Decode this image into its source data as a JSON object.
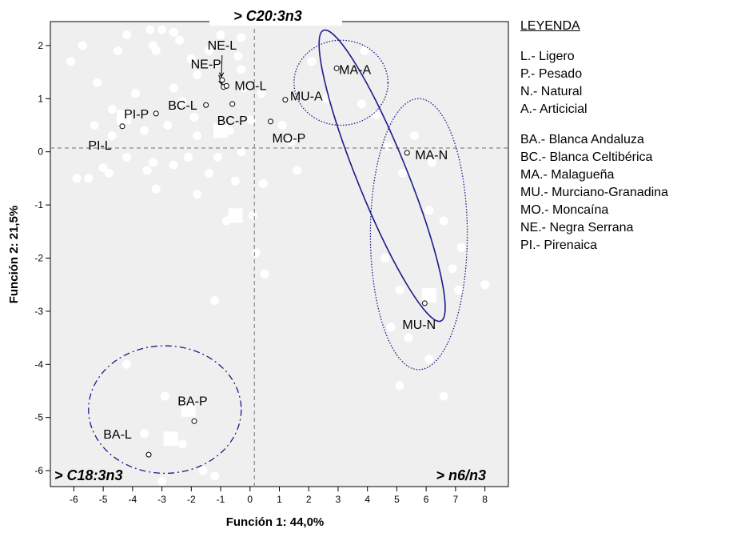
{
  "chart_data": {
    "type": "scatter",
    "xlabel": "Función 1: 44,0%",
    "ylabel": "Función 2: 21,5%",
    "xlim": [
      -6.8,
      8.8
    ],
    "ylim": [
      -6.3,
      2.45
    ],
    "x_ticks": [
      -6,
      -5,
      -4,
      -3,
      -2,
      -1,
      0,
      1,
      2,
      3,
      4,
      5,
      6,
      7,
      8
    ],
    "y_ticks": [
      2,
      1,
      0,
      -1,
      -2,
      -3,
      -4,
      -5,
      -6
    ],
    "reference_lines": {
      "x": 0.15,
      "y": 0.07
    },
    "grid": false,
    "corner_labels": {
      "top": "> C20:3n3",
      "bottom_left": "> C18:3n3",
      "bottom_right": "> n6/n3"
    },
    "centroids": [
      {
        "label": "NE-L",
        "x": -0.95,
        "y": 1.35
      },
      {
        "label": "NE-P",
        "x": -0.9,
        "y": 1.22
      },
      {
        "label": "MO-L",
        "x": -0.8,
        "y": 1.24
      },
      {
        "label": "BC-L",
        "x": -1.5,
        "y": 0.88
      },
      {
        "label": "BC-P",
        "x": -0.6,
        "y": 0.9
      },
      {
        "label": "PI-P",
        "x": -3.2,
        "y": 0.72
      },
      {
        "label": "PI-L",
        "x": -4.35,
        "y": 0.48
      },
      {
        "label": "MU-A",
        "x": 1.2,
        "y": 0.98
      },
      {
        "label": "MO-P",
        "x": 0.7,
        "y": 0.57
      },
      {
        "label": "MA-A",
        "x": 2.95,
        "y": 1.57
      },
      {
        "label": "MA-N",
        "x": 5.35,
        "y": -0.02
      },
      {
        "label": "MU-N",
        "x": 5.95,
        "y": -2.85
      },
      {
        "label": "BA-P",
        "x": -1.9,
        "y": -5.07
      },
      {
        "label": "BA-L",
        "x": -3.45,
        "y": -5.7
      }
    ],
    "groups": [
      {
        "members": [
          "MA-A"
        ],
        "style": "dotted",
        "cx": 3.1,
        "cy": 1.3,
        "rx": 1.6,
        "ry": 0.8,
        "rot": 0
      },
      {
        "members": [
          "MA-N",
          "MU-N"
        ],
        "style": "dotted",
        "cx": 5.75,
        "cy": -1.55,
        "rx": 1.65,
        "ry": 2.55,
        "rot": 0
      },
      {
        "members": [
          "MA-A",
          "MA-N",
          "MU-N"
        ],
        "style": "solid",
        "cx": 4.5,
        "cy": -0.45,
        "rx": 0.85,
        "ry": 2.95,
        "rot": -22
      },
      {
        "members": [
          "BA-P",
          "BA-L"
        ],
        "style": "dashdot",
        "cx": -2.9,
        "cy": -4.85,
        "rx": 2.6,
        "ry": 1.2,
        "rot": 0
      }
    ],
    "background_points": [
      [
        -4.2,
        2.2
      ],
      [
        -3.4,
        2.3
      ],
      [
        -3.0,
        2.3
      ],
      [
        -2.6,
        2.25
      ],
      [
        -1.0,
        2.2
      ],
      [
        -0.3,
        2.15
      ],
      [
        -5.7,
        2.0
      ],
      [
        -4.5,
        1.9
      ],
      [
        -3.2,
        1.9
      ],
      [
        -2.0,
        1.75
      ],
      [
        -1.4,
        1.9
      ],
      [
        -0.4,
        1.8
      ],
      [
        -6.1,
        1.7
      ],
      [
        -5.2,
        1.3
      ],
      [
        -3.9,
        1.1
      ],
      [
        -2.6,
        1.2
      ],
      [
        -1.8,
        1.45
      ],
      [
        -0.3,
        1.55
      ],
      [
        -4.7,
        0.8
      ],
      [
        -2.3,
        0.95
      ],
      [
        -1.9,
        0.65
      ],
      [
        -0.2,
        1.2
      ],
      [
        0.4,
        1.1
      ],
      [
        -5.3,
        0.5
      ],
      [
        -4.7,
        0.3
      ],
      [
        -3.6,
        0.4
      ],
      [
        -2.8,
        0.5
      ],
      [
        -1.8,
        0.3
      ],
      [
        -0.7,
        0.4
      ],
      [
        0.05,
        0.6
      ],
      [
        1.1,
        0.5
      ],
      [
        -5.0,
        -0.3
      ],
      [
        -4.2,
        -0.1
      ],
      [
        -3.3,
        -0.2
      ],
      [
        -2.1,
        -0.1
      ],
      [
        -1.1,
        -0.1
      ],
      [
        -0.3,
        0.0
      ],
      [
        -5.9,
        -0.5
      ],
      [
        -4.8,
        -0.4
      ],
      [
        -3.5,
        -0.35
      ],
      [
        -2.6,
        -0.25
      ],
      [
        -1.4,
        -0.4
      ],
      [
        -0.5,
        -0.55
      ],
      [
        0.45,
        -0.6
      ],
      [
        1.6,
        -0.35
      ],
      [
        -3.2,
        -0.7
      ],
      [
        -1.8,
        -0.8
      ],
      [
        -0.8,
        -1.3
      ],
      [
        -1.2,
        -2.8
      ],
      [
        0.1,
        -1.2
      ],
      [
        0.2,
        -1.9
      ],
      [
        0.5,
        -2.3
      ],
      [
        1.4,
        0.2
      ],
      [
        2.1,
        1.7
      ],
      [
        2.6,
        1.0
      ],
      [
        3.9,
        1.9
      ],
      [
        3.8,
        0.9
      ],
      [
        4.3,
        0.7
      ],
      [
        4.7,
        0.1
      ],
      [
        5.6,
        0.3
      ],
      [
        5.2,
        -0.4
      ],
      [
        6.2,
        -0.2
      ],
      [
        6.1,
        -1.1
      ],
      [
        6.6,
        -1.3
      ],
      [
        4.6,
        -2.0
      ],
      [
        5.1,
        -2.6
      ],
      [
        4.8,
        -3.3
      ],
      [
        5.4,
        -3.5
      ],
      [
        6.1,
        -3.9
      ],
      [
        6.6,
        -4.6
      ],
      [
        6.9,
        -2.2
      ],
      [
        7.1,
        -2.6
      ],
      [
        8.0,
        -2.5
      ],
      [
        7.2,
        -1.8
      ],
      [
        5.1,
        -4.4
      ],
      [
        -4.2,
        -4.0
      ],
      [
        -2.9,
        -4.6
      ],
      [
        -3.6,
        -5.3
      ],
      [
        -2.3,
        -5.5
      ],
      [
        -1.6,
        -6.0
      ],
      [
        -3.0,
        -6.2
      ],
      [
        -3.3,
        2.0
      ],
      [
        -2.4,
        2.1
      ],
      [
        -5.5,
        -0.5
      ],
      [
        -1.2,
        -6.1
      ]
    ],
    "background_squares": [
      [
        6.1,
        -2.7
      ],
      [
        -2.7,
        -5.4
      ],
      [
        -2.1,
        -4.85
      ],
      [
        -4.3,
        0.65
      ],
      [
        -1.0,
        0.4
      ],
      [
        -0.5,
        -1.2
      ]
    ]
  },
  "legend": {
    "title": "LEYENDA",
    "size_items": [
      "L.- Ligero",
      "P.- Pesado",
      "N.- Natural",
      "A.- Articicial"
    ],
    "breed_items": [
      "BA.- Blanca Andaluza",
      "BC.- Blanca Celtibérica",
      "MA.- Malagueña",
      "MU.- Murciano-Granadina",
      "MO.- Moncaína",
      "NE.- Negra Serrana",
      "PI.- Pirenaica"
    ]
  },
  "colors": {
    "plot_bg": "#efefef",
    "ellipse": "#1a1a8c",
    "reference_line": "#888888",
    "points": "#ffffff"
  }
}
